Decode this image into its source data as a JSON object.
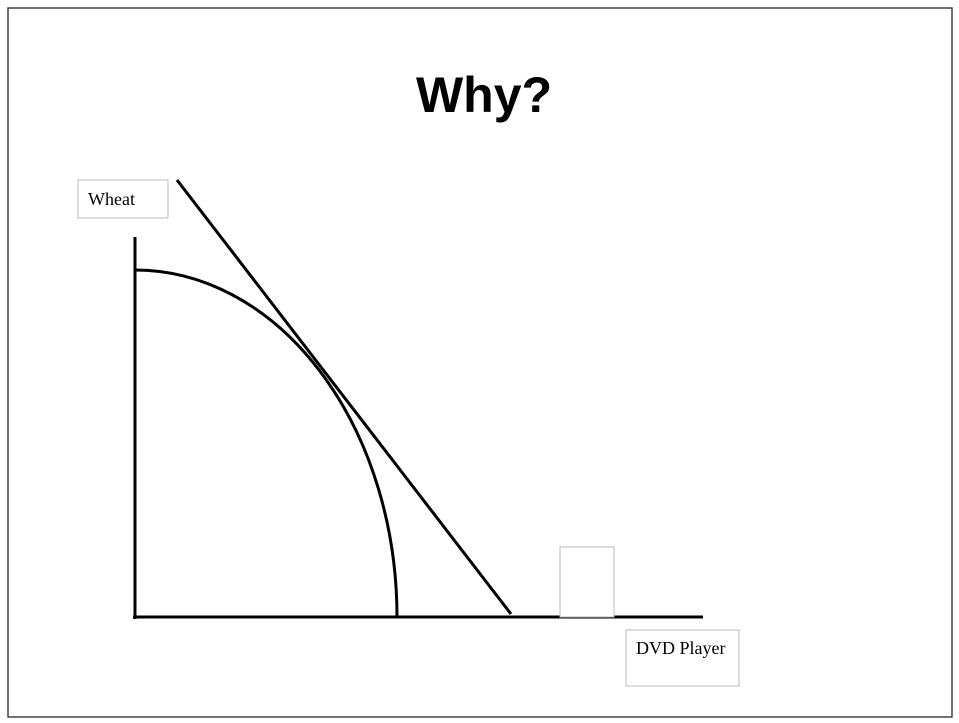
{
  "title": "Why?",
  "y_axis_label": "Wheat",
  "x_axis_label": "DVD Player"
}
